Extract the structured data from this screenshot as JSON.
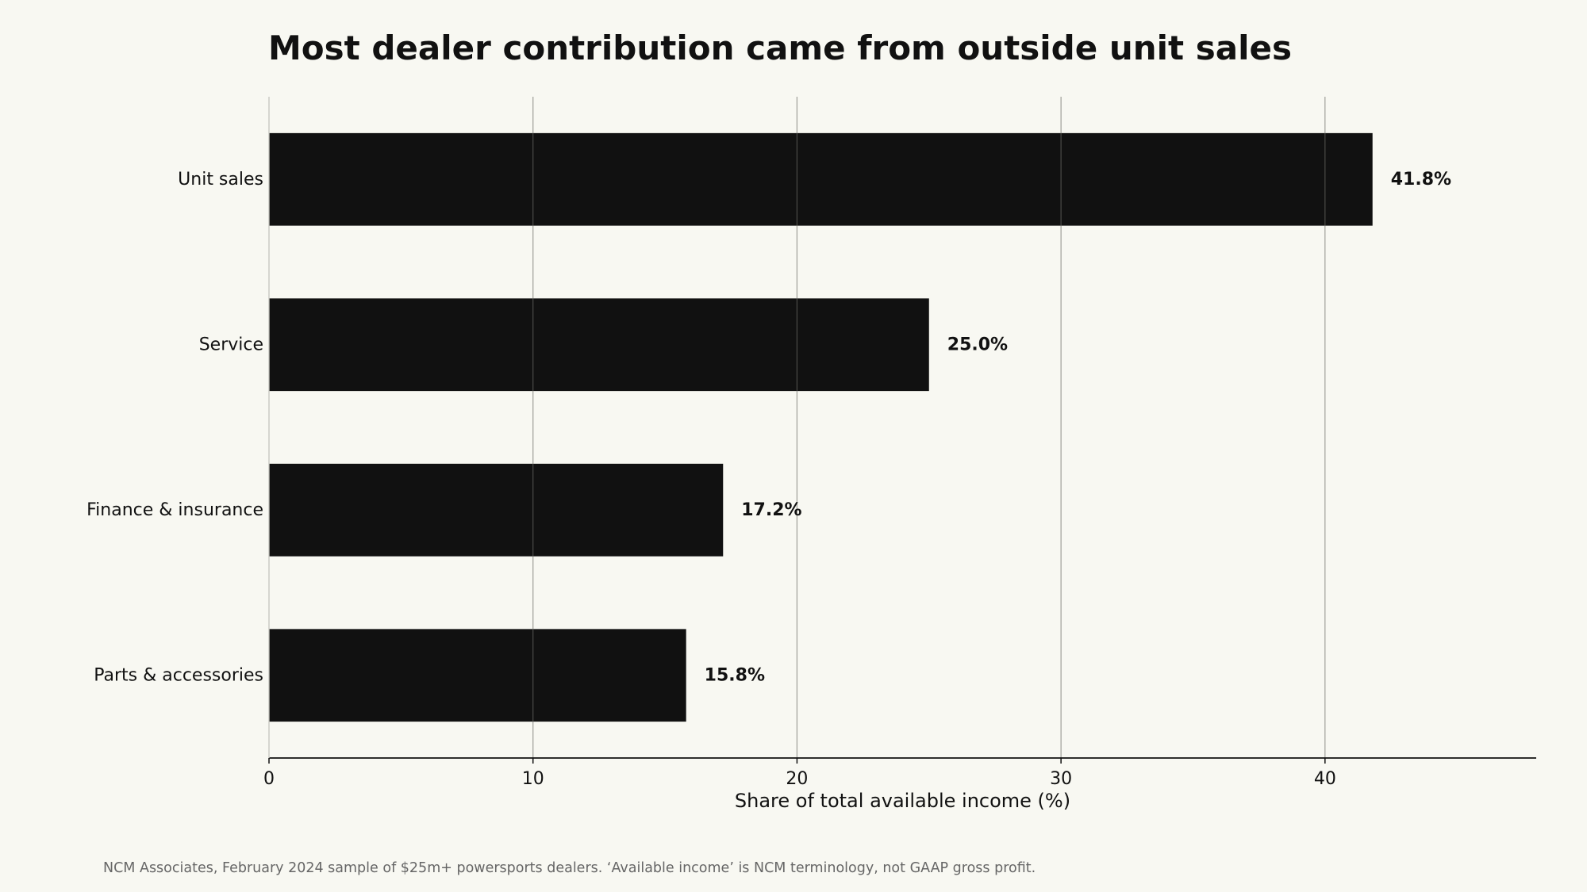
{
  "chart_data": {
    "type": "bar",
    "orientation": "horizontal",
    "title": "Most dealer contribution came from outside unit sales",
    "categories": [
      "Unit sales",
      "Service",
      "Finance & insurance",
      "Parts & accessories"
    ],
    "values": [
      41.8,
      25.0,
      17.2,
      15.8
    ],
    "value_labels": [
      "41.8%",
      "25.0%",
      "17.2%",
      "15.8%"
    ],
    "xlabel": "Share of total available income (%)",
    "ylabel": "",
    "xlim": [
      0,
      48
    ],
    "xticks": [
      0,
      10,
      20,
      30,
      40
    ],
    "grid": "vertical",
    "bar_color": "#111111",
    "grid_color": "#d6d6cf",
    "background_color": "#f8f8f2"
  },
  "source_note": "NCM Associates, February 2024 sample of $25m+ powersports dealers. ‘Available income’ is NCM terminology, not GAAP gross profit."
}
